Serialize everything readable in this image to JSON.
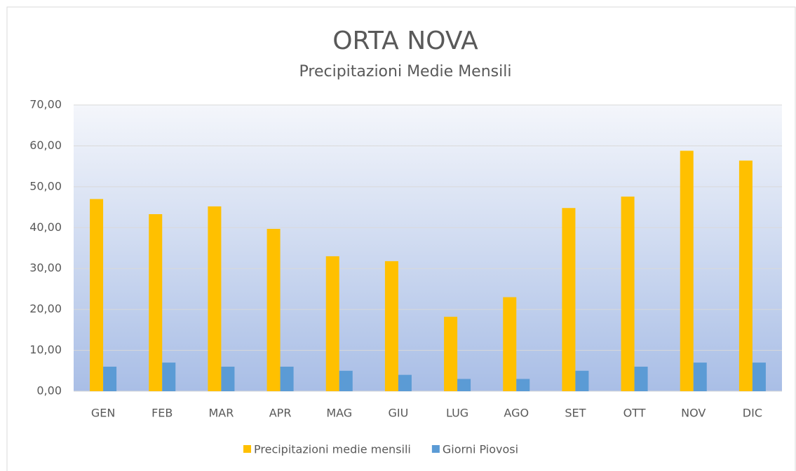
{
  "chart_data": {
    "type": "bar",
    "title": "ORTA NOVA",
    "subtitle": "Precipitazioni Medie Mensili",
    "categories": [
      "GEN",
      "FEB",
      "MAR",
      "APR",
      "MAG",
      "GIU",
      "LUG",
      "AGO",
      "SET",
      "OTT",
      "NOV",
      "DIC"
    ],
    "series": [
      {
        "name": "Precipitazioni medie mensili",
        "color": "#ffc000",
        "values": [
          47.0,
          43.3,
          45.2,
          39.7,
          33.0,
          31.8,
          18.2,
          23.0,
          44.8,
          47.6,
          58.8,
          56.4
        ]
      },
      {
        "name": "Giorni Piovosi",
        "color": "#5b9bd5",
        "values": [
          6,
          7,
          6,
          6,
          5,
          4,
          3,
          3,
          5,
          6,
          7,
          7
        ]
      }
    ],
    "ylim": [
      0,
      70
    ],
    "yticks": [
      {
        "value": 0,
        "label": "0,00"
      },
      {
        "value": 10,
        "label": "10,00"
      },
      {
        "value": 20,
        "label": "20,00"
      },
      {
        "value": 30,
        "label": "30,00"
      },
      {
        "value": 40,
        "label": "40,00"
      },
      {
        "value": 50,
        "label": "50,00"
      },
      {
        "value": 60,
        "label": "60,00"
      },
      {
        "value": 70,
        "label": "70,00"
      }
    ],
    "grid": true,
    "legend": "bottom"
  }
}
